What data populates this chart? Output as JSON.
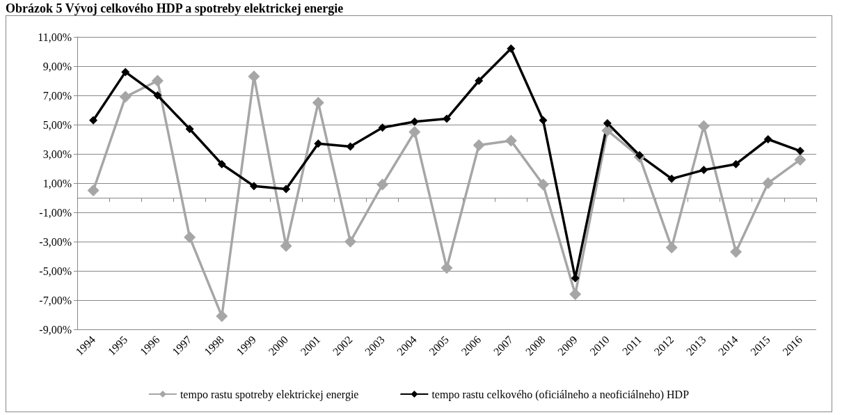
{
  "chart_data": {
    "type": "line",
    "title": "Obrázok 5 Vývoj celkového HDP a spotreby elektrickej energie",
    "categories": [
      "1994",
      "1995",
      "1996",
      "1997",
      "1998",
      "1999",
      "2000",
      "2001",
      "2002",
      "2003",
      "2004",
      "2005",
      "2006",
      "2007",
      "2008",
      "2009",
      "2010",
      "2011",
      "2012",
      "2013",
      "2014",
      "2015",
      "2016"
    ],
    "series": [
      {
        "name": "tempo rastu spotreby elektrickej energie",
        "color": "#a6a6a6",
        "values": [
          0.5,
          6.9,
          8.0,
          -2.7,
          -8.1,
          8.3,
          -3.3,
          6.5,
          -3.0,
          0.9,
          4.5,
          -4.8,
          3.6,
          3.9,
          0.9,
          -6.6,
          4.6,
          2.8,
          -3.4,
          4.9,
          -3.7,
          1.0,
          2.6
        ]
      },
      {
        "name": "tempo rastu celkového (oficiálneho a neoficiálneho) HDP",
        "color": "#000000",
        "values": [
          5.3,
          8.6,
          7.0,
          4.7,
          2.3,
          0.8,
          0.6,
          3.7,
          3.5,
          4.8,
          5.2,
          5.4,
          8.0,
          10.2,
          5.3,
          -5.5,
          5.1,
          2.9,
          1.3,
          1.9,
          2.3,
          4.0,
          3.2
        ]
      }
    ],
    "ylim": [
      -9,
      11
    ],
    "yticks": [
      {
        "value": -9,
        "label": "-9,00%"
      },
      {
        "value": -7,
        "label": "-7,00%"
      },
      {
        "value": -5,
        "label": "-5,00%"
      },
      {
        "value": -3,
        "label": "-3,00%"
      },
      {
        "value": -1,
        "label": "-1,00%"
      },
      {
        "value": 1,
        "label": "1,00%"
      },
      {
        "value": 3,
        "label": "3,00%"
      },
      {
        "value": 5,
        "label": "5,00%"
      },
      {
        "value": 7,
        "label": "7,00%"
      },
      {
        "value": 9,
        "label": "9,00%"
      },
      {
        "value": 11,
        "label": "11,00%"
      }
    ],
    "grid": "y",
    "legend": "bottom",
    "marker": "diamond",
    "line_style": "solid"
  }
}
